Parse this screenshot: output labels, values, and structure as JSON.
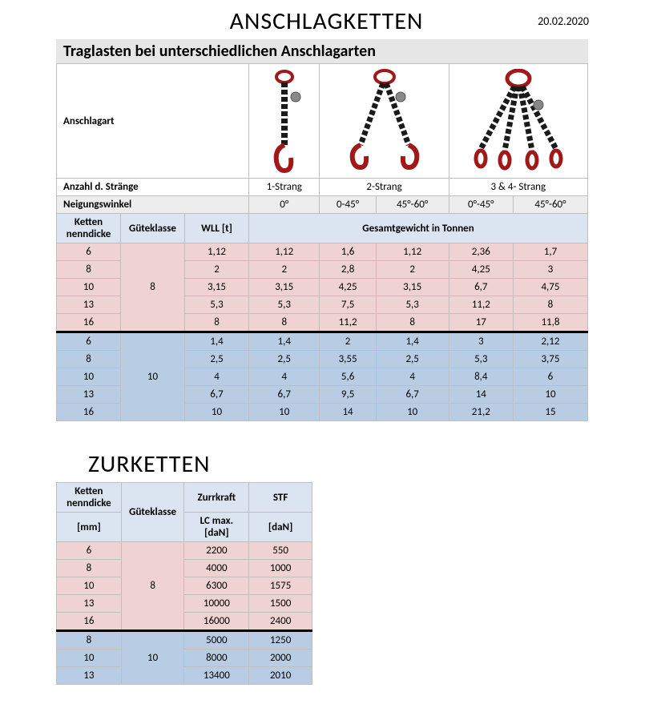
{
  "date": "20.02.2020",
  "title1": "ANSCHLAGKETTEN",
  "subtitle1": "Traglasten bei unterschiedlichen Anschlagarten",
  "labels": {
    "anschlagart": "Anschlagart",
    "anzahl": "Anzahl d. Stränge",
    "neigung": "Neigungswinkel",
    "ketten": "Ketten nenndicke",
    "guete": "Güteklasse",
    "wll": "WLL [t]",
    "gesamt": "Gesamtgewicht in Tonnen",
    "strang1": "1-Strang",
    "strang2": "2-Strang",
    "strang34": "3 & 4- Strang"
  },
  "angles": [
    "0°",
    "0-45°",
    "45°-60°",
    "0°-45°",
    "45°-60°"
  ],
  "colors": {
    "grey": "#ededed",
    "hdr_blue": "#dbe5f1",
    "pink": "#efd3d2",
    "blue": "#b8cce4",
    "border": "#bfbfbf",
    "chain_red": "#a01818",
    "chain_black": "#1a1a1a"
  },
  "group8": {
    "guete": "8",
    "rows": [
      {
        "d": "6",
        "v": [
          "1,12",
          "1,12",
          "1,6",
          "1,12",
          "2,36",
          "1,7"
        ]
      },
      {
        "d": "8",
        "v": [
          "2",
          "2",
          "2,8",
          "2",
          "4,25",
          "3"
        ]
      },
      {
        "d": "10",
        "v": [
          "3,15",
          "3,15",
          "4,25",
          "3,15",
          "6,7",
          "4,75"
        ]
      },
      {
        "d": "13",
        "v": [
          "5,3",
          "5,3",
          "7,5",
          "5,3",
          "11,2",
          "8"
        ]
      },
      {
        "d": "16",
        "v": [
          "8",
          "8",
          "11,2",
          "8",
          "17",
          "11,8"
        ]
      }
    ]
  },
  "group10": {
    "guete": "10",
    "rows": [
      {
        "d": "6",
        "v": [
          "1,4",
          "1,4",
          "2",
          "1,4",
          "3",
          "2,12"
        ]
      },
      {
        "d": "8",
        "v": [
          "2,5",
          "2,5",
          "3,55",
          "2,5",
          "5,3",
          "3,75"
        ]
      },
      {
        "d": "10",
        "v": [
          "4",
          "4",
          "5,6",
          "4",
          "8,4",
          "6"
        ]
      },
      {
        "d": "13",
        "v": [
          "6,7",
          "6,7",
          "9,5",
          "6,7",
          "14",
          "10"
        ]
      },
      {
        "d": "16",
        "v": [
          "10",
          "10",
          "14",
          "10",
          "21,2",
          "15"
        ]
      }
    ]
  },
  "title2": "ZURKETTEN",
  "zur_labels": {
    "ketten": "Ketten nenndicke",
    "mm": "[mm]",
    "guete": "Güteklasse",
    "zurr": "Zurrkraft",
    "lc": "LC max. [daN]",
    "stf": "STF",
    "dan": "[daN]"
  },
  "zur8": {
    "guete": "8",
    "rows": [
      {
        "d": "6",
        "lc": "2200",
        "stf": "550"
      },
      {
        "d": "8",
        "lc": "4000",
        "stf": "1000"
      },
      {
        "d": "10",
        "lc": "6300",
        "stf": "1575"
      },
      {
        "d": "13",
        "lc": "10000",
        "stf": "1500"
      },
      {
        "d": "16",
        "lc": "16000",
        "stf": "2400"
      }
    ]
  },
  "zur10": {
    "guete": "10",
    "rows": [
      {
        "d": "8",
        "lc": "5000",
        "stf": "1250"
      },
      {
        "d": "10",
        "lc": "8000",
        "stf": "2000"
      },
      {
        "d": "13",
        "lc": "13400",
        "stf": "2010"
      }
    ]
  }
}
